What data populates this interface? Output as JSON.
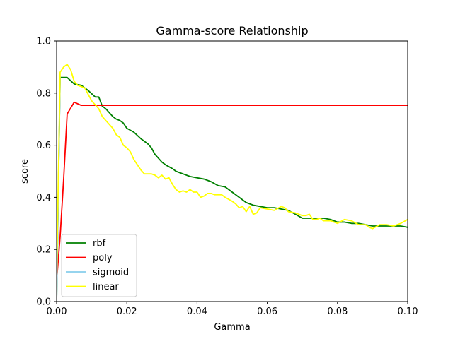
{
  "chart_data": {
    "type": "line",
    "title": "Gamma-score Relationship",
    "xlabel": "Gamma",
    "ylabel": "score",
    "xlim": [
      0.0,
      0.1
    ],
    "ylim": [
      0.0,
      1.0
    ],
    "xticks": [
      "0.00",
      "0.02",
      "0.04",
      "0.06",
      "0.08",
      "0.10"
    ],
    "yticks": [
      "0.0",
      "0.2",
      "0.4",
      "0.6",
      "0.8",
      "1.0"
    ],
    "grid": false,
    "legend_position": "lower-left",
    "series": [
      {
        "name": "rbf",
        "color": "#008000",
        "x": [
          0.0,
          0.001,
          0.003,
          0.005,
          0.007,
          0.009,
          0.011,
          0.012,
          0.013,
          0.014,
          0.016,
          0.017,
          0.018,
          0.019,
          0.02,
          0.022,
          0.024,
          0.026,
          0.027,
          0.028,
          0.03,
          0.031,
          0.033,
          0.034,
          0.036,
          0.038,
          0.04,
          0.042,
          0.044,
          0.046,
          0.048,
          0.05,
          0.052,
          0.054,
          0.056,
          0.058,
          0.06,
          0.062,
          0.064,
          0.066,
          0.068,
          0.07,
          0.072,
          0.074,
          0.076,
          0.078,
          0.08,
          0.082,
          0.084,
          0.086,
          0.088,
          0.09,
          0.092,
          0.094,
          0.096,
          0.098,
          0.1
        ],
        "y": [
          0.0,
          0.86,
          0.86,
          0.835,
          0.83,
          0.81,
          0.785,
          0.785,
          0.75,
          0.74,
          0.71,
          0.7,
          0.695,
          0.685,
          0.665,
          0.65,
          0.625,
          0.605,
          0.59,
          0.565,
          0.535,
          0.525,
          0.51,
          0.5,
          0.49,
          0.48,
          0.475,
          0.47,
          0.46,
          0.445,
          0.44,
          0.42,
          0.4,
          0.38,
          0.37,
          0.365,
          0.36,
          0.36,
          0.355,
          0.35,
          0.335,
          0.32,
          0.32,
          0.32,
          0.32,
          0.315,
          0.305,
          0.305,
          0.3,
          0.3,
          0.295,
          0.29,
          0.29,
          0.29,
          0.29,
          0.29,
          0.285
        ]
      },
      {
        "name": "poly",
        "color": "#ff0000",
        "x": [
          0.0,
          0.001,
          0.002,
          0.003,
          0.005,
          0.007,
          0.1
        ],
        "y": [
          0.08,
          0.25,
          0.47,
          0.72,
          0.765,
          0.753,
          0.753
        ]
      },
      {
        "name": "sigmoid",
        "color": "#87ceeb",
        "x": [
          0.0,
          0.001
        ],
        "y": [
          0.0,
          0.86
        ]
      },
      {
        "name": "linear",
        "color": "#ffff00",
        "x": [
          0.0,
          0.001,
          0.002,
          0.003,
          0.004,
          0.005,
          0.006,
          0.008,
          0.01,
          0.012,
          0.013,
          0.014,
          0.016,
          0.017,
          0.018,
          0.019,
          0.02,
          0.021,
          0.022,
          0.024,
          0.025,
          0.027,
          0.028,
          0.029,
          0.03,
          0.031,
          0.032,
          0.033,
          0.034,
          0.035,
          0.036,
          0.037,
          0.038,
          0.039,
          0.04,
          0.041,
          0.042,
          0.043,
          0.044,
          0.045,
          0.046,
          0.047,
          0.048,
          0.05,
          0.051,
          0.052,
          0.053,
          0.054,
          0.055,
          0.056,
          0.057,
          0.058,
          0.06,
          0.062,
          0.064,
          0.065,
          0.066,
          0.068,
          0.07,
          0.071,
          0.072,
          0.073,
          0.074,
          0.075,
          0.076,
          0.078,
          0.08,
          0.082,
          0.084,
          0.086,
          0.088,
          0.089,
          0.09,
          0.092,
          0.094,
          0.096,
          0.098,
          0.1
        ],
        "y": [
          0.08,
          0.88,
          0.9,
          0.91,
          0.89,
          0.845,
          0.83,
          0.82,
          0.77,
          0.74,
          0.71,
          0.695,
          0.665,
          0.64,
          0.63,
          0.6,
          0.59,
          0.575,
          0.545,
          0.505,
          0.49,
          0.49,
          0.485,
          0.475,
          0.485,
          0.47,
          0.475,
          0.45,
          0.43,
          0.42,
          0.425,
          0.42,
          0.43,
          0.42,
          0.42,
          0.4,
          0.405,
          0.415,
          0.415,
          0.41,
          0.41,
          0.41,
          0.4,
          0.385,
          0.375,
          0.36,
          0.365,
          0.345,
          0.365,
          0.335,
          0.34,
          0.36,
          0.355,
          0.35,
          0.365,
          0.36,
          0.345,
          0.34,
          0.33,
          0.33,
          0.335,
          0.315,
          0.315,
          0.32,
          0.31,
          0.31,
          0.3,
          0.315,
          0.31,
          0.295,
          0.295,
          0.285,
          0.28,
          0.295,
          0.295,
          0.29,
          0.3,
          0.315
        ]
      }
    ]
  }
}
